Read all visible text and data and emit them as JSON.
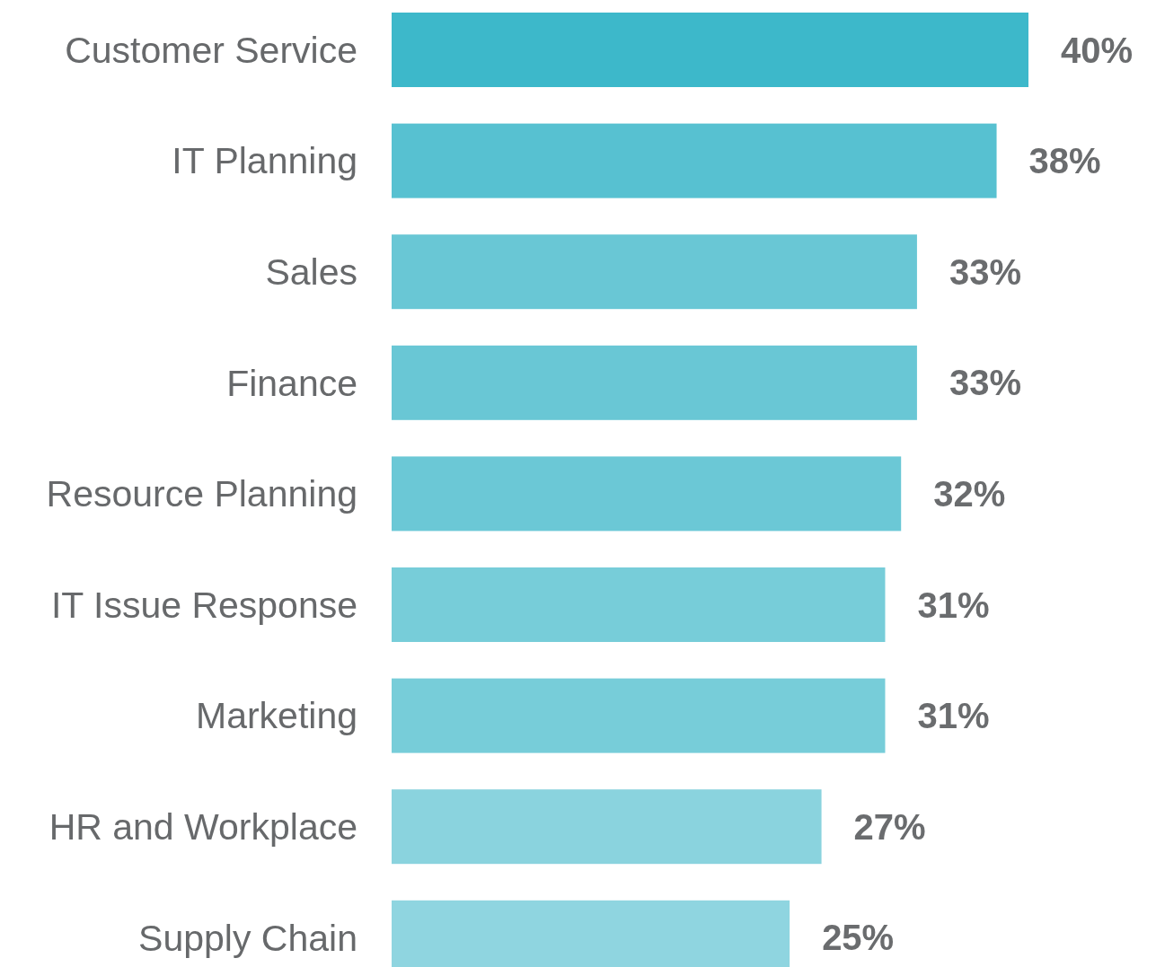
{
  "chart_data": {
    "type": "bar",
    "orientation": "horizontal",
    "categories": [
      "Customer Service",
      "IT Planning",
      "Sales",
      "Finance",
      "Resource Planning",
      "IT Issue Response",
      "Marketing",
      "HR and Workplace",
      "Supply Chain"
    ],
    "values": [
      40,
      38,
      33,
      33,
      32,
      31,
      31,
      27,
      25
    ],
    "colors": [
      "#3db8ca",
      "#57c1d1",
      "#69c7d5",
      "#69c7d5",
      "#6bc8d6",
      "#77cdd9",
      "#77cdd9",
      "#8ad3de",
      "#8fd5e0"
    ],
    "value_labels": [
      "40%",
      "38%",
      "33%",
      "33%",
      "32%",
      "31%",
      "31%",
      "27%",
      "25%"
    ]
  }
}
